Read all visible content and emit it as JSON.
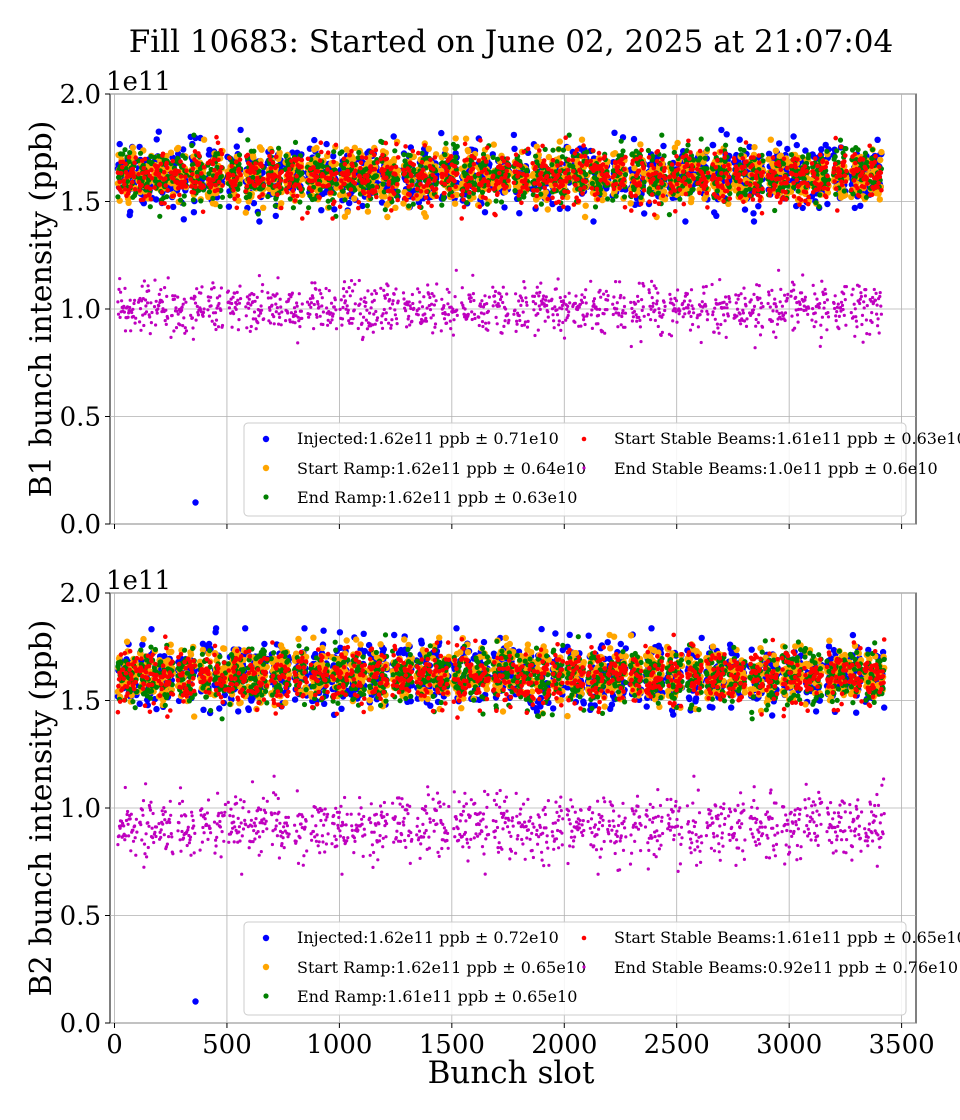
{
  "figure": {
    "title": "Fill 10683: Started on June 02, 2025 at 21:07:04"
  },
  "chart_data": [
    {
      "type": "scatter",
      "ylabel": "B1 bunch intensity (ppb)",
      "xlabel": "",
      "offset_label": "1e11",
      "xlim": [
        -20,
        3564
      ],
      "ylim": [
        0.0,
        2.0
      ],
      "xticks": [
        0,
        500,
        1000,
        1500,
        2000,
        2500,
        3000,
        3500
      ],
      "yticks": [
        0.0,
        0.5,
        1.0,
        1.5,
        2.0
      ],
      "grid": true,
      "legend_position": "lower-right",
      "x_range": [
        15,
        3430
      ],
      "series": [
        {
          "name": "Injected",
          "label": "Injected:1.62e11 ppb ± 0.71e10",
          "color": "#0000ff",
          "mean": 1.62,
          "std": 0.071,
          "outlier": [
            360,
            0.1
          ]
        },
        {
          "name": "Start Ramp",
          "label": "Start Ramp:1.62e11 ppb ± 0.64e10",
          "color": "#ffa500",
          "mean": 1.62,
          "std": 0.064
        },
        {
          "name": "End Ramp",
          "label": "End Ramp:1.62e11 ppb ± 0.63e10",
          "color": "#008000",
          "mean": 1.62,
          "std": 0.063
        },
        {
          "name": "Start Stable Beams",
          "label": "Start Stable Beams:1.61e11 ppb ± 0.63e10",
          "color": "#ff0000",
          "mean": 1.61,
          "std": 0.063
        },
        {
          "name": "End Stable Beams",
          "label": "End Stable Beams:1.0e11 ppb ± 0.6e10",
          "color": "#bf00bf",
          "mean": 1.0,
          "std": 0.06
        }
      ]
    },
    {
      "type": "scatter",
      "ylabel": "B2 bunch intensity (ppb)",
      "xlabel": "Bunch slot",
      "offset_label": "1e11",
      "xlim": [
        -20,
        3564
      ],
      "ylim": [
        0.0,
        2.0
      ],
      "xticks": [
        0,
        500,
        1000,
        1500,
        2000,
        2500,
        3000,
        3500
      ],
      "yticks": [
        0.0,
        0.5,
        1.0,
        1.5,
        2.0
      ],
      "grid": true,
      "legend_position": "lower-right",
      "x_range": [
        15,
        3430
      ],
      "series": [
        {
          "name": "Injected",
          "label": "Injected:1.62e11 ppb ± 0.72e10",
          "color": "#0000ff",
          "mean": 1.62,
          "std": 0.072,
          "outlier": [
            360,
            0.1
          ]
        },
        {
          "name": "Start Ramp",
          "label": "Start Ramp:1.62e11 ppb ± 0.65e10",
          "color": "#ffa500",
          "mean": 1.62,
          "std": 0.065
        },
        {
          "name": "End Ramp",
          "label": "End Ramp:1.61e11 ppb ± 0.65e10",
          "color": "#008000",
          "mean": 1.61,
          "std": 0.065
        },
        {
          "name": "Start Stable Beams",
          "label": "Start Stable Beams:1.61e11 ppb ± 0.65e10",
          "color": "#ff0000",
          "mean": 1.61,
          "std": 0.065
        },
        {
          "name": "End Stable Beams",
          "label": "End Stable Beams:0.92e11 ppb ± 0.76e10",
          "color": "#bf00bf",
          "mean": 0.92,
          "std": 0.076
        }
      ]
    }
  ]
}
